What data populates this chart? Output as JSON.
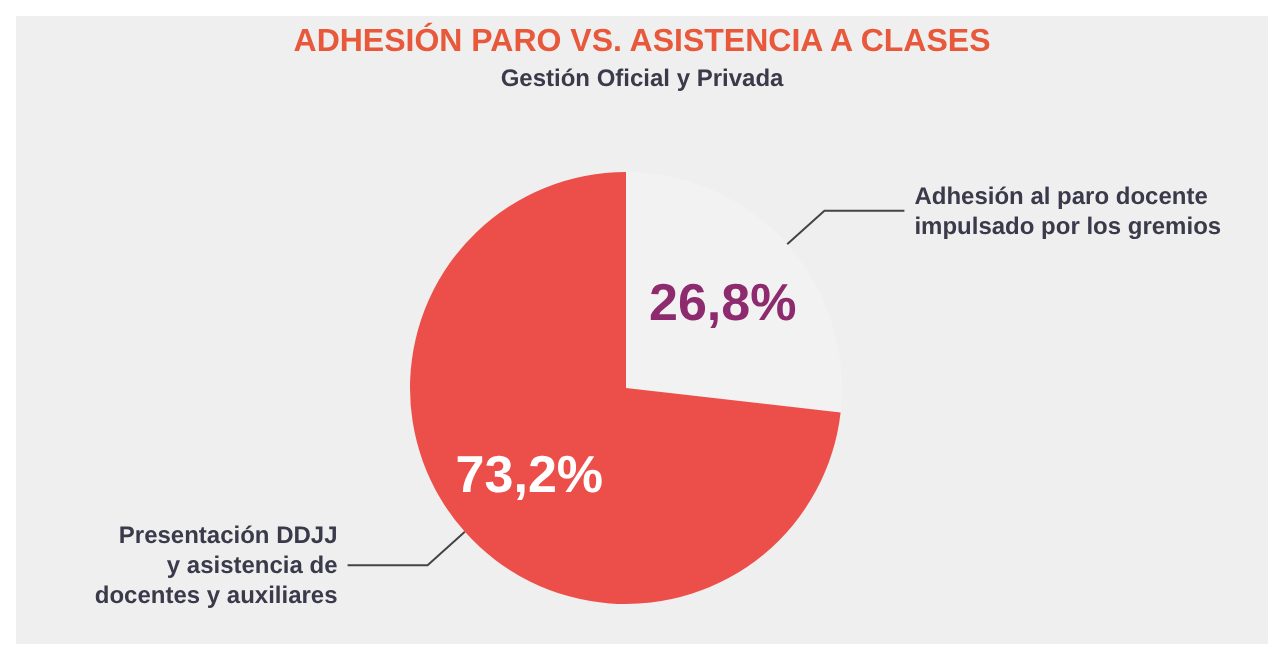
{
  "chart_data": {
    "type": "pie",
    "title": "ADHESIÓN PARO VS. ASISTENCIA A CLASES",
    "subtitle": "Gestión Oficial y Privada",
    "categories": [
      "Adhesión al paro docente\nimpulsado por los gremios",
      "Presentación DDJJ\ny asistencia de\ndocentes y auxiliares"
    ],
    "values": [
      26.8,
      73.2
    ],
    "colors": [
      "#f2f2f2",
      "#ec4f4a"
    ],
    "value_labels": [
      "26,8%",
      "73,2%"
    ],
    "legend": false
  }
}
